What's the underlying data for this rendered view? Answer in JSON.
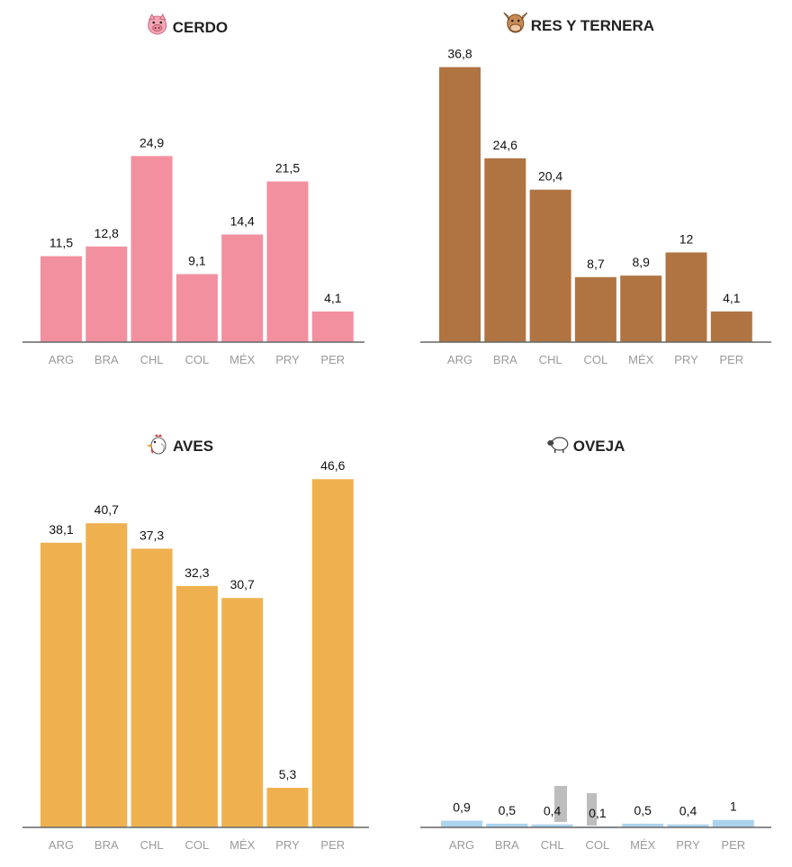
{
  "chart_data": [
    {
      "type": "bar",
      "title": "CERDO",
      "icon": "pig-icon",
      "color": "#f2909f",
      "categories": [
        "ARG",
        "BRA",
        "CHL",
        "COL",
        "MÉX",
        "PRY",
        "PER"
      ],
      "values": [
        11.5,
        12.8,
        24.9,
        9.1,
        14.4,
        21.5,
        4.1
      ],
      "labels": [
        "11,5",
        "12,8",
        "24,9",
        "9,1",
        "14,4",
        "21,5",
        "4,1"
      ],
      "ylim": [
        0,
        48
      ],
      "grid": false,
      "legend": "none"
    },
    {
      "type": "bar",
      "title": "RES Y TERNERA",
      "icon": "cow-icon",
      "color": "#b07442",
      "categories": [
        "ARG",
        "BRA",
        "CHL",
        "COL",
        "MÉX",
        "PRY",
        "PER"
      ],
      "values": [
        36.8,
        24.6,
        20.4,
        8.7,
        8.9,
        12,
        4.1
      ],
      "labels": [
        "36,8",
        "24,6",
        "20,4",
        "8,7",
        "8,9",
        "12",
        "4,1"
      ],
      "ylim": [
        0,
        48
      ],
      "grid": false,
      "legend": "none"
    },
    {
      "type": "bar",
      "title": "AVES",
      "icon": "chicken-icon",
      "color": "#efb150",
      "categories": [
        "ARG",
        "BRA",
        "CHL",
        "COL",
        "MÉX",
        "PRY",
        "PER"
      ],
      "values": [
        38.1,
        40.7,
        37.3,
        32.3,
        30.7,
        5.3,
        46.6
      ],
      "labels": [
        "38,1",
        "40,7",
        "37,3",
        "32,3",
        "30,7",
        "5,3",
        "46,6"
      ],
      "ylim": [
        0,
        48
      ],
      "grid": false,
      "legend": "none"
    },
    {
      "type": "bar",
      "title": "OVEJA",
      "icon": "sheep-icon",
      "color": "#acd3ee",
      "categories": [
        "ARG",
        "BRA",
        "CHL",
        "COL",
        "MÉX",
        "PRY",
        "PER"
      ],
      "values": [
        0.9,
        0.5,
        0.4,
        0.1,
        0.5,
        0.4,
        1
      ],
      "labels": [
        "0,9",
        "0,5",
        "0,4",
        "0,1",
        "0,5",
        "0,4",
        "1"
      ],
      "ylim": [
        0,
        48
      ],
      "grid": false,
      "legend": "none"
    }
  ]
}
